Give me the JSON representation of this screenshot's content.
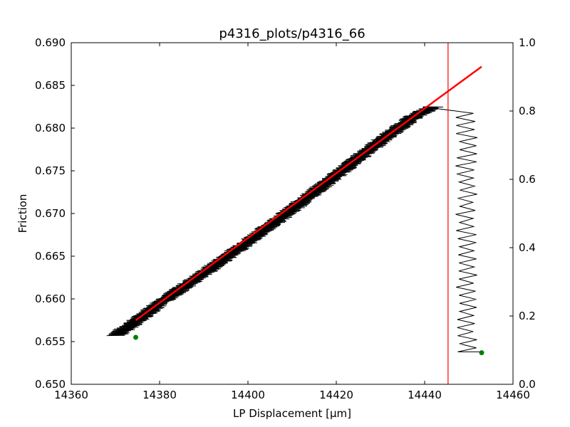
{
  "chart_data": {
    "type": "line",
    "title": "p4316_plots/p4316_66",
    "xlabel": "LP Displacement [μm]",
    "ylabel": "Friction",
    "xlim": [
      14360,
      14460
    ],
    "ylim": [
      0.65,
      0.69
    ],
    "y2lim": [
      0.0,
      1.0
    ],
    "x_ticks": [
      "14360",
      "14380",
      "14400",
      "14420",
      "14440",
      "14460"
    ],
    "y_ticks": [
      "0.650",
      "0.655",
      "0.660",
      "0.665",
      "0.670",
      "0.675",
      "0.680",
      "0.685",
      "0.690"
    ],
    "y2_ticks": [
      "0.0",
      "0.2",
      "0.4",
      "0.6",
      "0.8",
      "1.0"
    ],
    "grid": false,
    "colors": {
      "friction": "#000000",
      "fit": "#ff0000",
      "vline": "#ff0000",
      "markers": "#008000"
    },
    "friction_trend": {
      "x": [
        14370,
        14375,
        14380,
        14390,
        14400,
        14410,
        14420,
        14430,
        14438,
        14442,
        14445,
        14448,
        14450
      ],
      "y": [
        0.6557,
        0.6575,
        0.6595,
        0.663,
        0.6667,
        0.6705,
        0.6745,
        0.6785,
        0.6815,
        0.6825,
        0.6828,
        0.6827,
        0.6825
      ],
      "noise_amplitude_x": 2.5
    },
    "friction_drop": {
      "x_range": [
        14447,
        14452
      ],
      "y_start": 0.6822,
      "y_end": 0.6538,
      "end_x": [
        14448,
        14453
      ]
    },
    "fit_line": {
      "x": [
        14374.6,
        14452.9
      ],
      "y": [
        0.6575,
        0.6872
      ]
    },
    "vertical_line_x": 14445.3,
    "markers": [
      {
        "x": 14374.6,
        "y": 0.6555
      },
      {
        "x": 14452.9,
        "y": 0.6537
      }
    ]
  }
}
